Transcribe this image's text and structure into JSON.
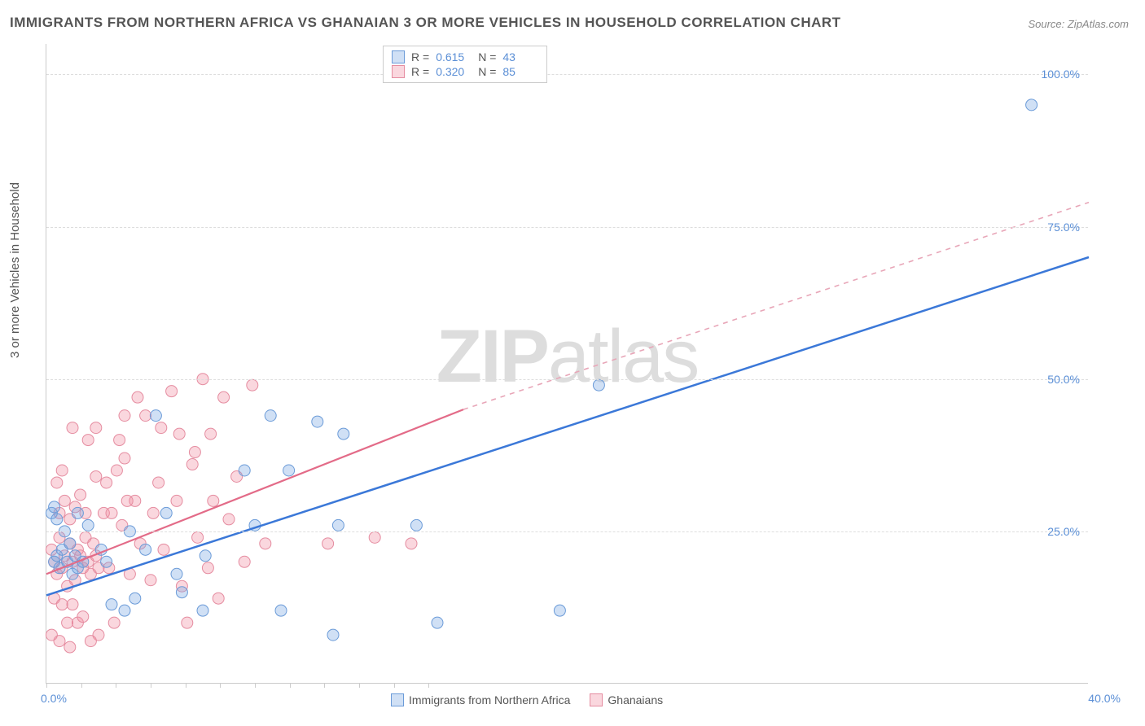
{
  "title": "IMMIGRANTS FROM NORTHERN AFRICA VS GHANAIAN 3 OR MORE VEHICLES IN HOUSEHOLD CORRELATION CHART",
  "source": "Source: ZipAtlas.com",
  "watermark_zip": "ZIP",
  "watermark_atlas": "atlas",
  "y_axis_label": "3 or more Vehicles in Household",
  "chart": {
    "type": "scatter",
    "xlim": [
      0,
      40
    ],
    "ylim": [
      0,
      105
    ],
    "y_ticks": [
      25,
      50,
      75,
      100
    ],
    "y_tick_labels": [
      "25.0%",
      "50.0%",
      "75.0%",
      "100.0%"
    ],
    "x_ticks_pct": [
      0,
      3.33,
      6.67,
      10,
      13.33,
      16.67,
      20,
      23.33,
      26.67,
      30,
      33.33,
      36.67
    ],
    "x_tick_labels": {
      "first": "0.0%",
      "last": "40.0%"
    },
    "background_color": "#ffffff",
    "grid_color": "#dddddd",
    "axis_color": "#cccccc",
    "tick_label_color": "#5b8fd6",
    "series": [
      {
        "name": "Immigrants from Northern Africa",
        "color_fill": "rgba(120,165,225,0.35)",
        "color_stroke": "#6b9bd8",
        "marker_radius": 7,
        "R": "0.615",
        "N": "43",
        "regression": {
          "x1": 0,
          "y1": 14.5,
          "x2": 40,
          "y2": 70,
          "dash": null,
          "color": "#3b78d8"
        },
        "points": [
          [
            0.3,
            20
          ],
          [
            0.4,
            21
          ],
          [
            0.5,
            19
          ],
          [
            0.6,
            22
          ],
          [
            0.8,
            20
          ],
          [
            0.9,
            23
          ],
          [
            1.0,
            18
          ],
          [
            1.1,
            21
          ],
          [
            1.2,
            19
          ],
          [
            1.4,
            20
          ],
          [
            0.2,
            28
          ],
          [
            0.3,
            29
          ],
          [
            0.4,
            27
          ],
          [
            0.7,
            25
          ],
          [
            1.2,
            28
          ],
          [
            1.6,
            26
          ],
          [
            2.1,
            22
          ],
          [
            2.3,
            20
          ],
          [
            2.5,
            13
          ],
          [
            3.0,
            12
          ],
          [
            3.2,
            25
          ],
          [
            3.4,
            14
          ],
          [
            3.8,
            22
          ],
          [
            4.2,
            44
          ],
          [
            4.6,
            28
          ],
          [
            5.0,
            18
          ],
          [
            5.2,
            15
          ],
          [
            6.0,
            12
          ],
          [
            6.1,
            21
          ],
          [
            7.6,
            35
          ],
          [
            8.0,
            26
          ],
          [
            8.6,
            44
          ],
          [
            9.0,
            12
          ],
          [
            9.3,
            35
          ],
          [
            10.4,
            43
          ],
          [
            11.0,
            8
          ],
          [
            11.2,
            26
          ],
          [
            11.4,
            41
          ],
          [
            14.2,
            26
          ],
          [
            15.0,
            10
          ],
          [
            19.7,
            12
          ],
          [
            21.2,
            49
          ],
          [
            37.8,
            95
          ]
        ]
      },
      {
        "name": "Ghanaians",
        "color_fill": "rgba(240,140,160,0.35)",
        "color_stroke": "#e58ca0",
        "marker_radius": 7,
        "R": "0.320",
        "N": "85",
        "regression_solid": {
          "x1": 0,
          "y1": 18,
          "x2": 16,
          "y2": 45,
          "color": "#e36b88"
        },
        "regression_dash": {
          "x1": 16,
          "y1": 45,
          "x2": 40,
          "y2": 79,
          "color": "#e8a6b8"
        },
        "points": [
          [
            0.2,
            22
          ],
          [
            0.3,
            20
          ],
          [
            0.4,
            18
          ],
          [
            0.5,
            24
          ],
          [
            0.6,
            19
          ],
          [
            0.7,
            21
          ],
          [
            0.8,
            16
          ],
          [
            0.9,
            23
          ],
          [
            1.0,
            20
          ],
          [
            1.1,
            17
          ],
          [
            1.2,
            22
          ],
          [
            1.3,
            21
          ],
          [
            1.4,
            19
          ],
          [
            1.5,
            24
          ],
          [
            1.6,
            20
          ],
          [
            1.7,
            18
          ],
          [
            1.8,
            23
          ],
          [
            1.9,
            21
          ],
          [
            2.0,
            19
          ],
          [
            0.5,
            28
          ],
          [
            0.7,
            30
          ],
          [
            0.9,
            27
          ],
          [
            1.1,
            29
          ],
          [
            1.3,
            31
          ],
          [
            1.5,
            28
          ],
          [
            1.9,
            34
          ],
          [
            2.2,
            28
          ],
          [
            2.4,
            19
          ],
          [
            2.6,
            10
          ],
          [
            2.7,
            35
          ],
          [
            2.9,
            26
          ],
          [
            3.0,
            37
          ],
          [
            3.2,
            18
          ],
          [
            3.4,
            30
          ],
          [
            3.6,
            23
          ],
          [
            3.8,
            44
          ],
          [
            4.0,
            17
          ],
          [
            4.1,
            28
          ],
          [
            4.3,
            33
          ],
          [
            4.5,
            22
          ],
          [
            4.8,
            48
          ],
          [
            5.0,
            30
          ],
          [
            5.2,
            16
          ],
          [
            5.4,
            10
          ],
          [
            5.6,
            36
          ],
          [
            5.8,
            24
          ],
          [
            6.0,
            50
          ],
          [
            6.2,
            19
          ],
          [
            6.4,
            30
          ],
          [
            6.6,
            14
          ],
          [
            6.8,
            47
          ],
          [
            7.0,
            27
          ],
          [
            7.3,
            34
          ],
          [
            7.6,
            20
          ],
          [
            7.9,
            49
          ],
          [
            1.0,
            13
          ],
          [
            1.2,
            10
          ],
          [
            2.0,
            8
          ],
          [
            2.3,
            33
          ],
          [
            2.8,
            40
          ],
          [
            4.4,
            42
          ],
          [
            5.7,
            38
          ],
          [
            0.4,
            33
          ],
          [
            0.6,
            35
          ],
          [
            3.0,
            44
          ],
          [
            3.5,
            47
          ],
          [
            0.8,
            10
          ],
          [
            1.4,
            11
          ],
          [
            2.5,
            28
          ],
          [
            3.1,
            30
          ],
          [
            1.0,
            42
          ],
          [
            1.6,
            40
          ],
          [
            1.9,
            42
          ],
          [
            0.3,
            14
          ],
          [
            0.6,
            13
          ],
          [
            5.1,
            41
          ],
          [
            6.3,
            41
          ],
          [
            8.4,
            23
          ],
          [
            10.8,
            23
          ],
          [
            12.6,
            24
          ],
          [
            14.0,
            23
          ],
          [
            0.2,
            8
          ],
          [
            0.5,
            7
          ],
          [
            0.9,
            6
          ],
          [
            1.7,
            7
          ]
        ]
      }
    ]
  },
  "stats_legend": {
    "rows": [
      {
        "swatch_fill": "rgba(120,165,225,0.35)",
        "swatch_stroke": "#6b9bd8",
        "R": "0.615",
        "N": "43"
      },
      {
        "swatch_fill": "rgba(240,140,160,0.35)",
        "swatch_stroke": "#e58ca0",
        "R": "0.320",
        "N": "85"
      }
    ],
    "R_label": "R  =",
    "N_label": "N  ="
  },
  "bottom_legend": {
    "items": [
      {
        "swatch_fill": "rgba(120,165,225,0.35)",
        "swatch_stroke": "#6b9bd8",
        "label": "Immigrants from Northern Africa"
      },
      {
        "swatch_fill": "rgba(240,140,160,0.35)",
        "swatch_stroke": "#e58ca0",
        "label": "Ghanaians"
      }
    ]
  }
}
